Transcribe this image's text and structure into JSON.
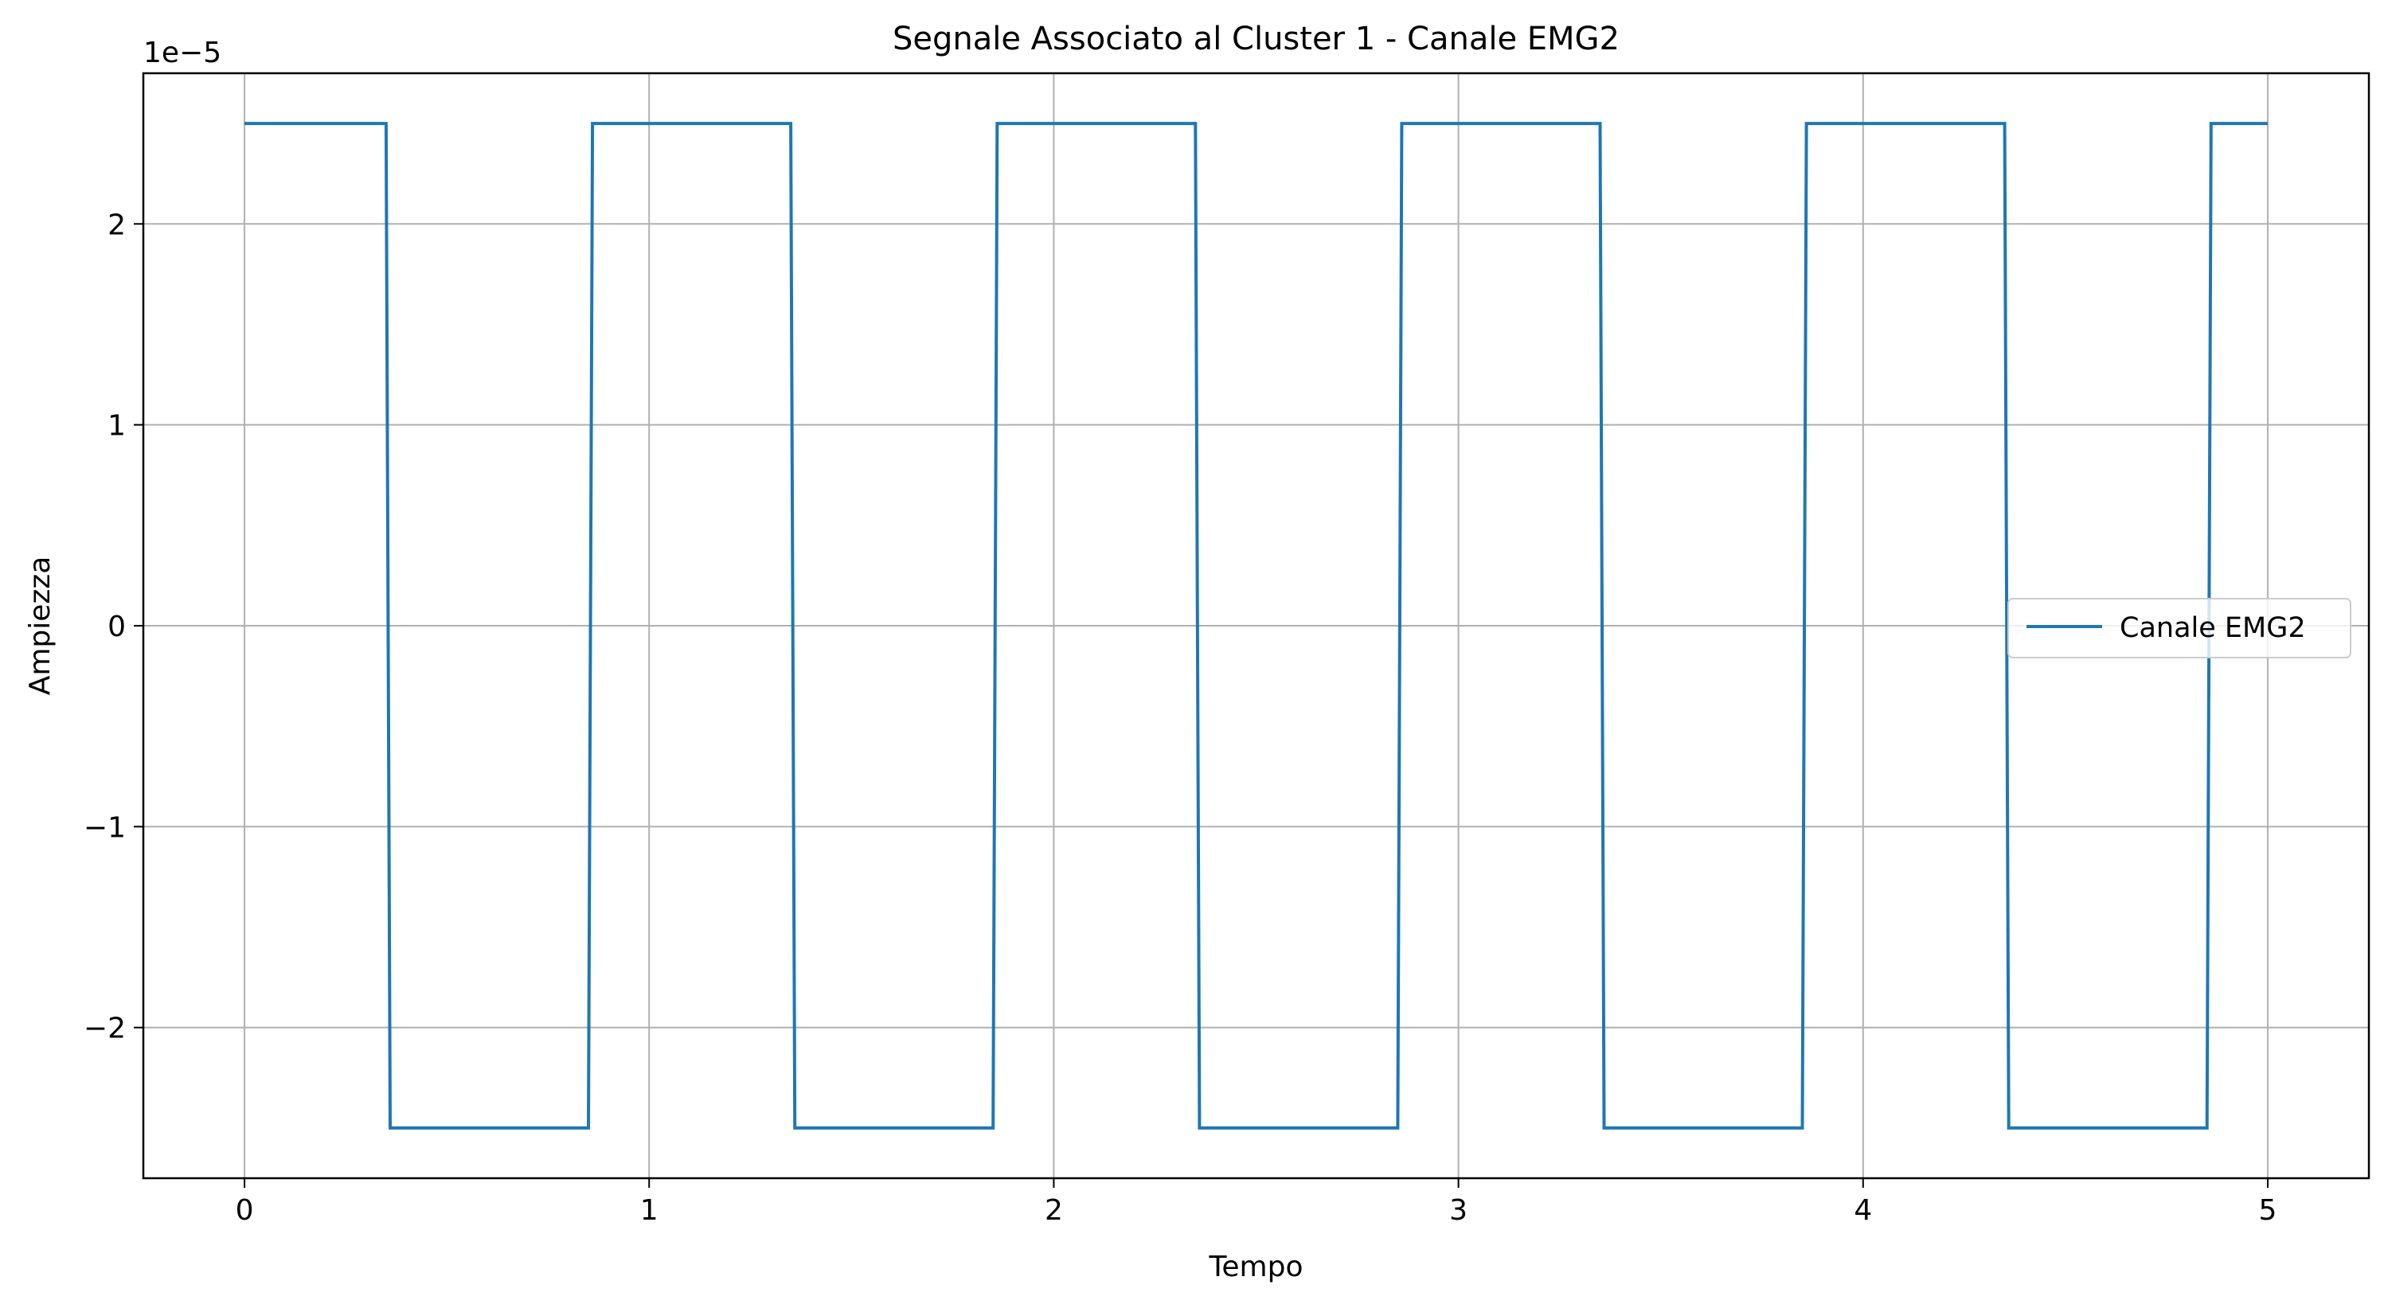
{
  "chart_data": {
    "type": "line",
    "title": "Segnale Associato al Cluster 1 - Canale EMG2",
    "xlabel": "Tempo",
    "ylabel": "Ampiezza",
    "y_offset_label": "1e−5",
    "xlim": [
      -0.25,
      5.25
    ],
    "ylim": [
      -2.75e-05,
      2.75e-05
    ],
    "xticks": [
      0,
      1,
      2,
      3,
      4,
      5
    ],
    "xtick_labels": [
      "0",
      "1",
      "2",
      "3",
      "4",
      "5"
    ],
    "yticks": [
      -2e-05,
      -1e-05,
      0,
      1e-05,
      2e-05
    ],
    "ytick_labels": [
      "−2",
      "−1",
      "0",
      "1",
      "2"
    ],
    "grid": true,
    "legend_position": "center right",
    "series": [
      {
        "name": "Canale EMG2",
        "color": "#1f77b4",
        "x": [
          0,
          0.35,
          0.36,
          0.85,
          0.86,
          1.35,
          1.36,
          1.85,
          1.86,
          2.35,
          2.36,
          2.85,
          2.86,
          3.35,
          3.36,
          3.85,
          3.86,
          4.35,
          4.36,
          4.85,
          4.86,
          5.0
        ],
        "y": [
          2.5e-05,
          2.5e-05,
          -2.5e-05,
          -2.5e-05,
          2.5e-05,
          2.5e-05,
          -2.5e-05,
          -2.5e-05,
          2.5e-05,
          2.5e-05,
          -2.5e-05,
          -2.5e-05,
          2.5e-05,
          2.5e-05,
          -2.5e-05,
          -2.5e-05,
          2.5e-05,
          2.5e-05,
          -2.5e-05,
          -2.5e-05,
          2.5e-05,
          2.5e-05
        ]
      }
    ]
  }
}
